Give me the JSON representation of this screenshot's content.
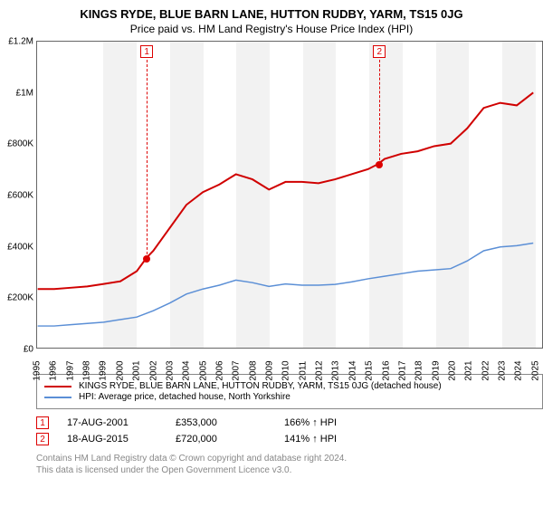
{
  "title": "KINGS RYDE, BLUE BARN LANE, HUTTON RUDBY, YARM, TS15 0JG",
  "subtitle": "Price paid vs. HM Land Registry's House Price Index (HPI)",
  "chart": {
    "type": "line",
    "background_color": "#ffffff",
    "band_color": "#f2f2f2",
    "border_color": "#666666",
    "xlim": [
      1995,
      2025.5
    ],
    "ylim": [
      0,
      1200000
    ],
    "ytick_step": 200000,
    "yticks": [
      "£0",
      "£200K",
      "£400K",
      "£600K",
      "£800K",
      "£1M",
      "£1.2M"
    ],
    "xticks": [
      1995,
      1996,
      1997,
      1998,
      1999,
      2000,
      2001,
      2002,
      2003,
      2004,
      2005,
      2006,
      2007,
      2008,
      2009,
      2010,
      2011,
      2012,
      2013,
      2014,
      2015,
      2016,
      2017,
      2018,
      2019,
      2020,
      2021,
      2022,
      2023,
      2024,
      2025
    ],
    "bands": [
      {
        "start": 1999,
        "end": 2001
      },
      {
        "start": 2003,
        "end": 2005
      },
      {
        "start": 2007,
        "end": 2009
      },
      {
        "start": 2011,
        "end": 2013
      },
      {
        "start": 2015,
        "end": 2017
      },
      {
        "start": 2019,
        "end": 2021
      },
      {
        "start": 2023,
        "end": 2025
      }
    ],
    "series": [
      {
        "name": "price_paid",
        "color": "#d00000",
        "line_width": 2,
        "data": [
          [
            1995,
            230000
          ],
          [
            1996,
            230000
          ],
          [
            1997,
            235000
          ],
          [
            1998,
            240000
          ],
          [
            1999,
            250000
          ],
          [
            2000,
            260000
          ],
          [
            2001,
            300000
          ],
          [
            2001.6,
            353000
          ],
          [
            2002,
            380000
          ],
          [
            2003,
            470000
          ],
          [
            2004,
            560000
          ],
          [
            2005,
            610000
          ],
          [
            2006,
            640000
          ],
          [
            2007,
            680000
          ],
          [
            2008,
            660000
          ],
          [
            2009,
            620000
          ],
          [
            2010,
            650000
          ],
          [
            2011,
            650000
          ],
          [
            2012,
            645000
          ],
          [
            2013,
            660000
          ],
          [
            2014,
            680000
          ],
          [
            2015,
            700000
          ],
          [
            2015.6,
            720000
          ],
          [
            2016,
            740000
          ],
          [
            2017,
            760000
          ],
          [
            2018,
            770000
          ],
          [
            2019,
            790000
          ],
          [
            2020,
            800000
          ],
          [
            2021,
            860000
          ],
          [
            2022,
            940000
          ],
          [
            2023,
            960000
          ],
          [
            2024,
            950000
          ],
          [
            2025,
            1000000
          ]
        ]
      },
      {
        "name": "hpi",
        "color": "#5b8fd6",
        "line_width": 1.5,
        "data": [
          [
            1995,
            85000
          ],
          [
            1996,
            85000
          ],
          [
            1997,
            90000
          ],
          [
            1998,
            95000
          ],
          [
            1999,
            100000
          ],
          [
            2000,
            110000
          ],
          [
            2001,
            120000
          ],
          [
            2002,
            145000
          ],
          [
            2003,
            175000
          ],
          [
            2004,
            210000
          ],
          [
            2005,
            230000
          ],
          [
            2006,
            245000
          ],
          [
            2007,
            265000
          ],
          [
            2008,
            255000
          ],
          [
            2009,
            240000
          ],
          [
            2010,
            250000
          ],
          [
            2011,
            245000
          ],
          [
            2012,
            245000
          ],
          [
            2013,
            248000
          ],
          [
            2014,
            258000
          ],
          [
            2015,
            270000
          ],
          [
            2016,
            280000
          ],
          [
            2017,
            290000
          ],
          [
            2018,
            300000
          ],
          [
            2019,
            305000
          ],
          [
            2020,
            310000
          ],
          [
            2021,
            340000
          ],
          [
            2022,
            380000
          ],
          [
            2023,
            395000
          ],
          [
            2024,
            400000
          ],
          [
            2025,
            410000
          ]
        ]
      }
    ],
    "markers": [
      {
        "id": "1",
        "year": 2001.6,
        "price": 353000
      },
      {
        "id": "2",
        "year": 2015.6,
        "price": 720000
      }
    ]
  },
  "legend": {
    "items": [
      {
        "color": "#d00000",
        "label": "KINGS RYDE, BLUE BARN LANE, HUTTON RUDBY, YARM, TS15 0JG (detached house)"
      },
      {
        "color": "#5b8fd6",
        "label": "HPI: Average price, detached house, North Yorkshire"
      }
    ]
  },
  "sales": [
    {
      "id": "1",
      "date": "17-AUG-2001",
      "price": "£353,000",
      "delta": "166% ↑ HPI"
    },
    {
      "id": "2",
      "date": "18-AUG-2015",
      "price": "£720,000",
      "delta": "141% ↑ HPI"
    }
  ],
  "footer": {
    "line1": "Contains HM Land Registry data © Crown copyright and database right 2024.",
    "line2": "This data is licensed under the Open Government Licence v3.0."
  }
}
